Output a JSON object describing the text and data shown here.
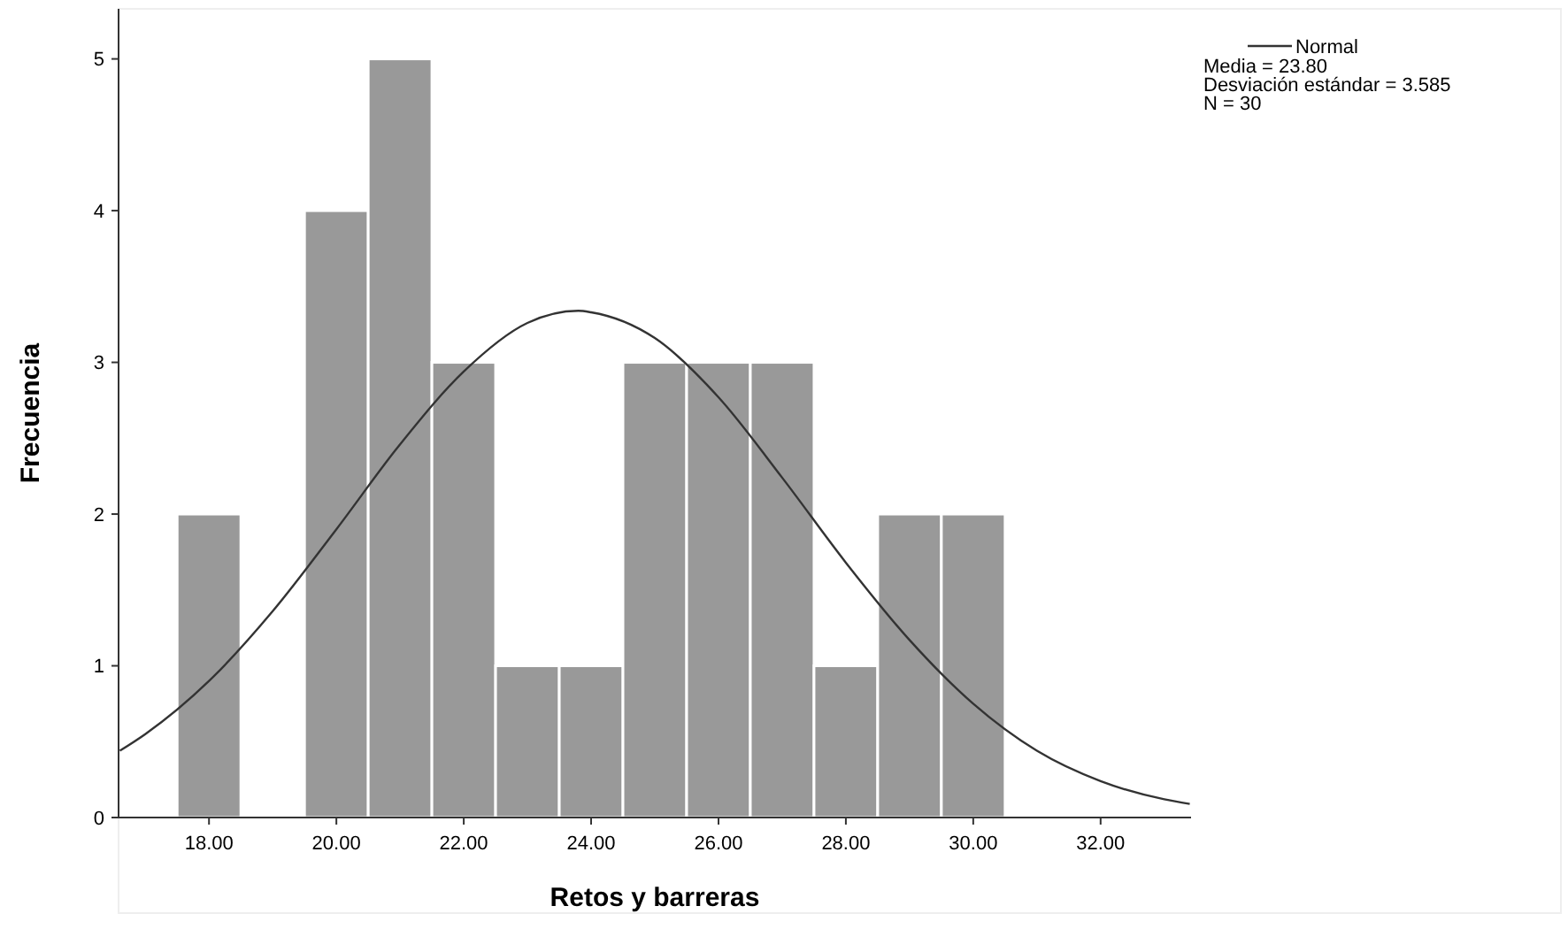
{
  "chart_data": {
    "type": "histogram",
    "xlabel": "Retos y barreras",
    "ylabel": "Frecuencia",
    "bins": [
      17.5,
      18.5,
      19.5,
      20.5,
      21.5,
      22.5,
      23.5,
      24.5,
      25.5,
      26.5,
      27.5,
      28.5,
      29.5,
      30.5
    ],
    "series": [
      {
        "type": "histogram",
        "color": "#999999",
        "values": [
          2,
          0,
          4,
          5,
          3,
          1,
          1,
          3,
          3,
          3,
          1,
          2,
          2
        ]
      },
      {
        "type": "line",
        "name": "Normal",
        "color": "#333333",
        "x": [
          16.6,
          17,
          18,
          19,
          20,
          21,
          22,
          23,
          23.8,
          24,
          25,
          26,
          27,
          28,
          29,
          30,
          31,
          32,
          33,
          33.4
        ],
        "values": [
          0.44,
          0.55,
          0.9,
          1.36,
          1.9,
          2.46,
          2.94,
          3.26,
          3.34,
          3.33,
          3.16,
          2.77,
          2.24,
          1.68,
          1.17,
          0.75,
          0.44,
          0.24,
          0.12,
          0.09
        ]
      }
    ],
    "xlim": [
      16.58,
      33.42
    ],
    "ylim": [
      0,
      5.33
    ],
    "xticks": [
      {
        "value": 18,
        "label": "18.00"
      },
      {
        "value": 20,
        "label": "20.00"
      },
      {
        "value": 22,
        "label": "22.00"
      },
      {
        "value": 24,
        "label": "24.00"
      },
      {
        "value": 26,
        "label": "26.00"
      },
      {
        "value": 28,
        "label": "28.00"
      },
      {
        "value": 30,
        "label": "30.00"
      },
      {
        "value": 32,
        "label": "32.00"
      }
    ],
    "yticks": [
      0,
      1,
      2,
      3,
      4,
      5
    ],
    "legend": "top right",
    "grid": false,
    "annotations": [
      "Media = 23.80",
      "Desviación estándar = 3.585",
      "N = 30"
    ]
  }
}
